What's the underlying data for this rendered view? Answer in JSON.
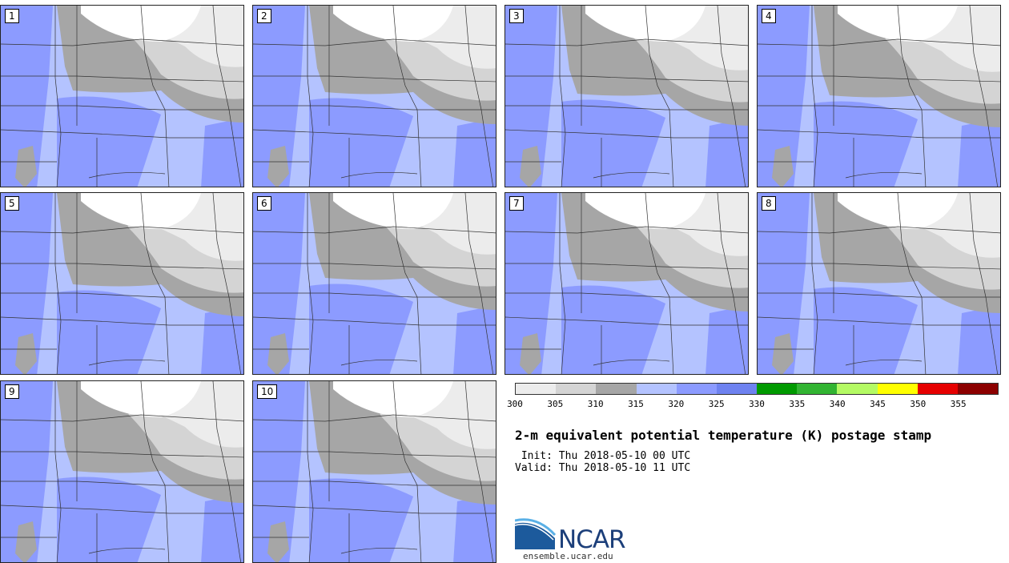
{
  "title": "2-m equivalent potential temperature (K) postage stamp",
  "init_text": " Init: Thu 2018-05-10 00 UTC",
  "valid_text": "Valid: Thu 2018-05-10 11 UTC",
  "logo_text": "NCAR",
  "logo_url": "ensemble.ucar.edu",
  "members": [
    "1",
    "2",
    "3",
    "4",
    "5",
    "6",
    "7",
    "8",
    "9",
    "10"
  ],
  "colorbar": {
    "ticks": [
      "300",
      "305",
      "310",
      "315",
      "320",
      "325",
      "330",
      "335",
      "340",
      "345",
      "350",
      "355"
    ],
    "colors": [
      "#ececec",
      "#d4d4d4",
      "#a6a6a6",
      "#b4c3ff",
      "#8c9bff",
      "#6e82f0",
      "#009a00",
      "#32b432",
      "#b4fa64",
      "#ffff00",
      "#e60000",
      "#8c0000"
    ]
  },
  "map_colors": {
    "white": "#ffffff",
    "light_gray": "#ececec",
    "mid_gray": "#d4d4d4",
    "dark_gray": "#a6a6a6",
    "light_blue": "#b4c3ff",
    "mid_blue": "#8c9bff",
    "dark_blue": "#6e82f0"
  }
}
